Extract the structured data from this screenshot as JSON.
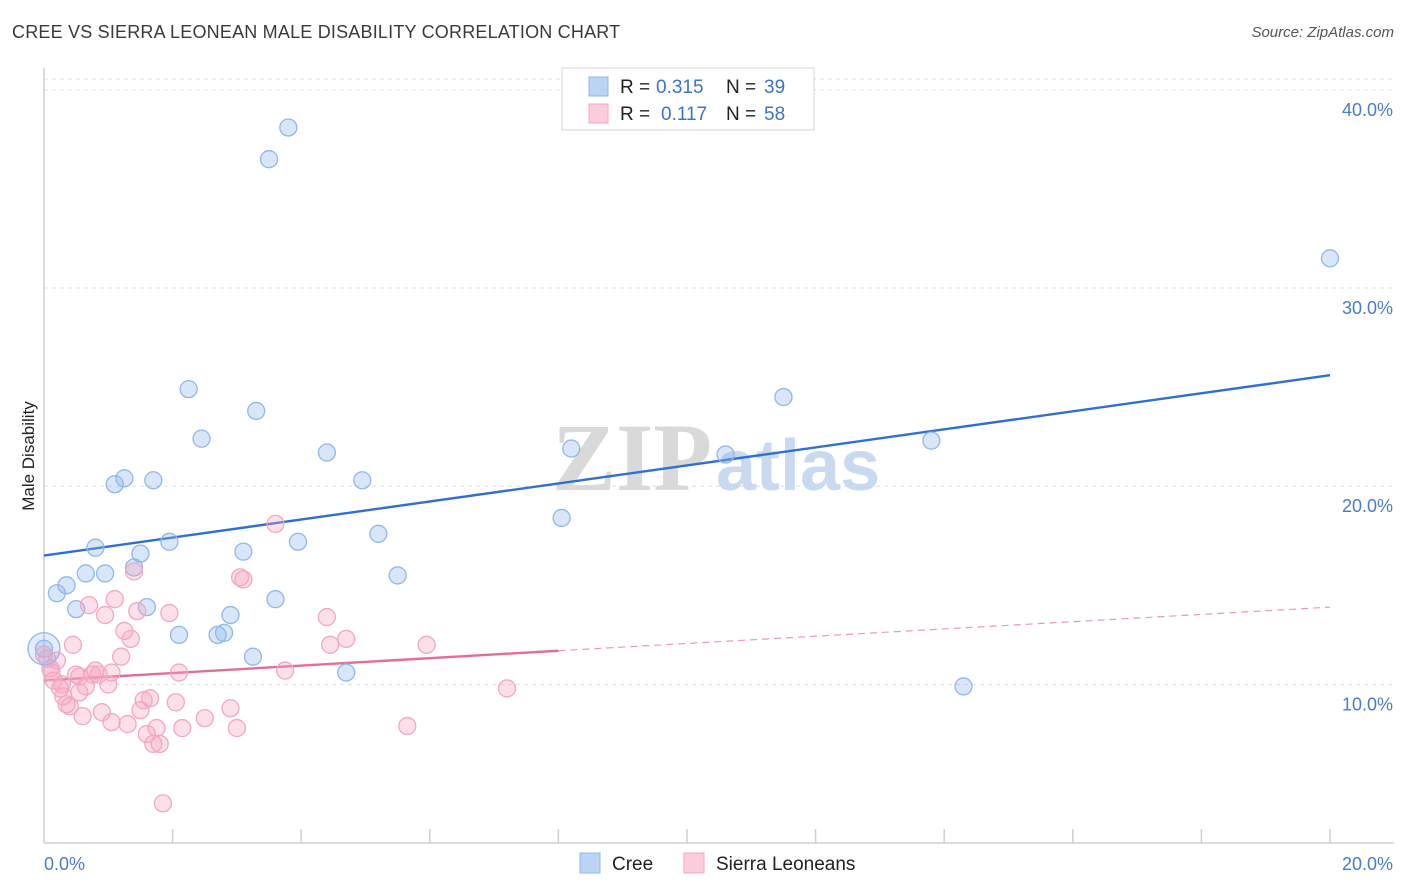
{
  "title": "CREE VS SIERRA LEONEAN MALE DISABILITY CORRELATION CHART",
  "source": "Source: ZipAtlas.com",
  "watermark": {
    "zip": "ZIP",
    "atlas": "atlas"
  },
  "legend": {
    "rows": [
      {
        "r_label": "R =",
        "r_value": "0.315",
        "n_label": "N =",
        "n_value": "39"
      },
      {
        "r_label": "R =",
        "r_value": "0.117",
        "n_label": "N =",
        "n_value": "58"
      }
    ]
  },
  "bottom_legend": [
    "Cree",
    "Sierra Leoneans"
  ],
  "chart_data": {
    "type": "scatter",
    "title": "CREE VS SIERRA LEONEAN MALE DISABILITY CORRELATION CHART",
    "ylabel": "Male Disability",
    "xlabel": "",
    "xlim": [
      0,
      20
    ],
    "ylim": [
      2,
      41
    ],
    "x_ticks": [
      {
        "value": 0,
        "label": "0.0%"
      },
      {
        "value": 20,
        "label": "20.0%"
      }
    ],
    "y_ticks": [
      {
        "value": 10,
        "label": "10.0%"
      },
      {
        "value": 20,
        "label": "20.0%"
      },
      {
        "value": 30,
        "label": "30.0%"
      },
      {
        "value": 40,
        "label": "40.0%"
      }
    ],
    "grid": true,
    "legend_position": "top-center",
    "series": [
      {
        "name": "Cree",
        "color": "#8fb8ea",
        "line_color": "#2f6fd0",
        "r": 0.315,
        "n": 39,
        "trend": {
          "x0": 0,
          "y0": 16.5,
          "x1": 20,
          "y1": 25.6,
          "dashed_to": 20
        },
        "points": [
          [
            0.0,
            11.8
          ],
          [
            0.2,
            14.6
          ],
          [
            0.35,
            15.0
          ],
          [
            0.5,
            13.8
          ],
          [
            0.65,
            15.6
          ],
          [
            0.8,
            16.9
          ],
          [
            0.95,
            15.6
          ],
          [
            1.1,
            20.1
          ],
          [
            1.25,
            20.4
          ],
          [
            1.5,
            16.6
          ],
          [
            1.4,
            15.9
          ],
          [
            1.6,
            13.9
          ],
          [
            1.7,
            20.3
          ],
          [
            1.95,
            17.2
          ],
          [
            2.1,
            12.5
          ],
          [
            2.25,
            24.9
          ],
          [
            2.45,
            22.4
          ],
          [
            2.7,
            12.5
          ],
          [
            2.8,
            12.6
          ],
          [
            2.9,
            13.5
          ],
          [
            3.1,
            16.7
          ],
          [
            3.3,
            23.8
          ],
          [
            3.25,
            11.4
          ],
          [
            3.5,
            36.5
          ],
          [
            3.6,
            14.3
          ],
          [
            3.8,
            38.1
          ],
          [
            3.95,
            17.2
          ],
          [
            4.4,
            21.7
          ],
          [
            4.7,
            10.6
          ],
          [
            4.95,
            20.3
          ],
          [
            5.2,
            17.6
          ],
          [
            5.5,
            15.5
          ],
          [
            8.05,
            18.4
          ],
          [
            8.2,
            21.9
          ],
          [
            10.6,
            21.6
          ],
          [
            11.5,
            24.5
          ],
          [
            13.8,
            22.3
          ],
          [
            14.3,
            9.9
          ],
          [
            20.0,
            31.5
          ]
        ]
      },
      {
        "name": "Sierra Leoneans",
        "color": "#f4a7bf",
        "line_color": "#e36d98",
        "r": 0.117,
        "n": 58,
        "trend": {
          "x0": 0,
          "y0": 10.2,
          "x1": 8.0,
          "y1": 11.7,
          "dashed_to": 20,
          "y_end": 13.9
        },
        "points": [
          [
            0.0,
            11.5
          ],
          [
            0.05,
            11.3
          ],
          [
            0.1,
            10.8
          ],
          [
            0.15,
            10.2
          ],
          [
            0.2,
            11.2
          ],
          [
            0.25,
            9.8
          ],
          [
            0.3,
            9.4
          ],
          [
            0.35,
            9.0
          ],
          [
            0.4,
            8.9
          ],
          [
            0.45,
            12.0
          ],
          [
            0.5,
            10.5
          ],
          [
            0.55,
            9.6
          ],
          [
            0.6,
            8.4
          ],
          [
            0.65,
            9.9
          ],
          [
            0.7,
            14.0
          ],
          [
            0.75,
            10.5
          ],
          [
            0.8,
            10.7
          ],
          [
            0.85,
            10.5
          ],
          [
            0.9,
            8.6
          ],
          [
            0.95,
            13.5
          ],
          [
            1.0,
            10.0
          ],
          [
            1.05,
            8.1
          ],
          [
            1.1,
            14.3
          ],
          [
            1.2,
            11.4
          ],
          [
            1.25,
            12.7
          ],
          [
            1.3,
            8.0
          ],
          [
            1.35,
            12.3
          ],
          [
            1.4,
            15.7
          ],
          [
            1.45,
            13.7
          ],
          [
            1.5,
            8.7
          ],
          [
            1.55,
            9.2
          ],
          [
            1.6,
            7.5
          ],
          [
            1.65,
            9.3
          ],
          [
            1.7,
            7.0
          ],
          [
            1.75,
            7.8
          ],
          [
            1.8,
            7.0
          ],
          [
            1.85,
            4.0
          ],
          [
            1.95,
            13.6
          ],
          [
            2.05,
            9.1
          ],
          [
            2.1,
            10.6
          ],
          [
            2.15,
            7.8
          ],
          [
            2.5,
            8.3
          ],
          [
            2.9,
            8.8
          ],
          [
            3.0,
            7.8
          ],
          [
            3.05,
            15.4
          ],
          [
            3.1,
            15.3
          ],
          [
            3.6,
            18.1
          ],
          [
            3.75,
            10.7
          ],
          [
            4.45,
            12.0
          ],
          [
            4.4,
            13.4
          ],
          [
            4.7,
            12.3
          ],
          [
            5.65,
            7.9
          ],
          [
            5.95,
            12.0
          ],
          [
            7.2,
            9.8
          ],
          [
            0.12,
            10.6
          ],
          [
            0.28,
            10.0
          ],
          [
            0.55,
            10.4
          ],
          [
            1.05,
            10.6
          ]
        ]
      }
    ]
  }
}
